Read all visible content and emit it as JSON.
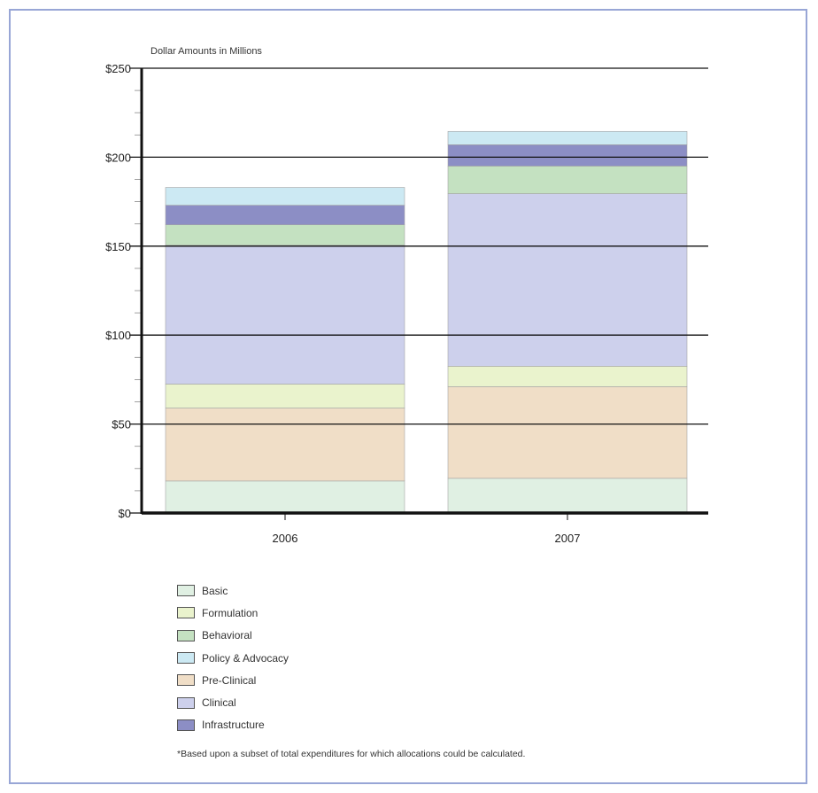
{
  "chart_data": {
    "type": "bar",
    "stacked": true,
    "ylabel": "Dollar Amounts in Millions",
    "categories": [
      "2006",
      "2007"
    ],
    "ylim": [
      0,
      250
    ],
    "yticks": [
      0,
      50,
      100,
      150,
      200,
      250
    ],
    "ytick_labels": [
      "$0",
      "$50",
      "$100",
      "$150",
      "$200",
      "$250"
    ],
    "grid": true,
    "legend_position": "bottom",
    "series": [
      {
        "name": "Basic",
        "color": "#e0f0e3",
        "values": [
          18,
          19.5
        ]
      },
      {
        "name": "Pre-Clinical",
        "color": "#f0dec7",
        "values": [
          41,
          51.5
        ]
      },
      {
        "name": "Formulation",
        "color": "#eaf3cd",
        "values": [
          13.5,
          11.5
        ]
      },
      {
        "name": "Clinical",
        "color": "#cdd0ec",
        "values": [
          78,
          97
        ]
      },
      {
        "name": "Behavioral",
        "color": "#c4e1c1",
        "values": [
          11.5,
          15.5
        ]
      },
      {
        "name": "Infrastructure",
        "color": "#8c8ec5",
        "values": [
          11,
          12
        ]
      },
      {
        "name": "Policy & Advocacy",
        "color": "#cce9f3",
        "values": [
          10,
          7.5
        ]
      }
    ],
    "legend_order": [
      "Basic",
      "Formulation",
      "Behavioral",
      "Policy & Advocacy",
      "Pre-Clinical",
      "Clinical",
      "Infrastructure"
    ]
  },
  "footnote": "*Based upon a subset of total expenditures for which allocations could be calculated."
}
